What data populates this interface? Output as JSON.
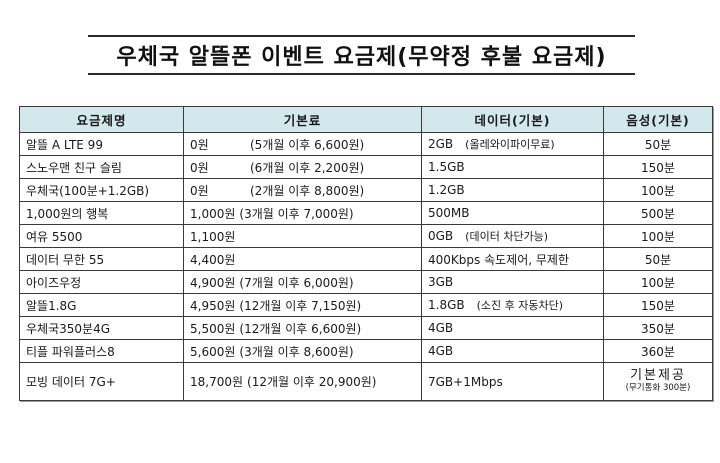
{
  "title": "우체국 알뜰폰 이벤트 요금제(무약정 후불 요금제)",
  "table": {
    "headers": [
      "요금제명",
      "기본료",
      "데이터(기본)",
      "음성(기본)"
    ],
    "header_bg": "#d2e8ed",
    "rows": [
      {
        "name": "알뜰 A LTE 99",
        "fee": "0원",
        "fee_after": "(5개월 이후 6,600원)",
        "data": "2GB",
        "data_note": "(올레와이파이무료)",
        "voice": "50분"
      },
      {
        "name": "스노우맨 친구 슬림",
        "fee": "0원",
        "fee_after": "(6개월 이후 2,200원)",
        "data": "1.5GB",
        "data_note": "",
        "voice": "150분"
      },
      {
        "name": "우체국(100분+1.2GB)",
        "fee": "0원",
        "fee_after": "(2개월 이후 8,800원)",
        "data": "1.2GB",
        "data_note": "",
        "voice": "100분"
      },
      {
        "name": "1,000원의 행복",
        "fee": "1,000원",
        "fee_after": "(3개월 이후 7,000원)",
        "data": "500MB",
        "data_note": "",
        "voice": "500분"
      },
      {
        "name": "여유 5500",
        "fee": "1,100원",
        "fee_after": "",
        "data": "0GB",
        "data_note": "(데이터 차단가능)",
        "voice": "100분"
      },
      {
        "name": "데이터 무한 55",
        "fee": "4,400원",
        "fee_after": "",
        "data": "400Kbps 속도제어, 무제한",
        "data_note": "",
        "voice": "50분"
      },
      {
        "name": "아이즈우정",
        "fee": "4,900원",
        "fee_after": "(7개월 이후 6,000원)",
        "data": "3GB",
        "data_note": "",
        "voice": "100분"
      },
      {
        "name": "알뜰1.8G",
        "fee": "4,950원",
        "fee_after": "(12개월 이후 7,150원)",
        "data": "1.8GB",
        "data_note": "(소진 후 자동차단)",
        "voice": "150분"
      },
      {
        "name": "우체국350분4G",
        "fee": "5,500원",
        "fee_after": "(12개월 이후 6,600원)",
        "data": "4GB",
        "data_note": "",
        "voice": "350분"
      },
      {
        "name": "티플 파워플러스8",
        "fee": "5,600원",
        "fee_after": "(3개월 이후 8,600원)",
        "data": "4GB",
        "data_note": "",
        "voice": "360분"
      },
      {
        "name": "모빙 데이터 7G+",
        "fee": "18,700원",
        "fee_after": "(12개월 이후 20,900원)",
        "data": "7GB+1Mbps",
        "data_note": "",
        "voice": "기본제공",
        "voice_sub": "(무기통화 300분)"
      }
    ]
  }
}
